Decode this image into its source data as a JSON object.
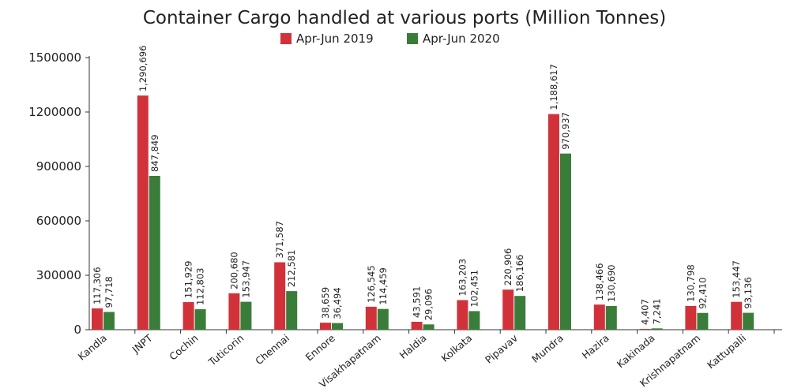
{
  "colors": {
    "series1": "#d1323a",
    "series2": "#3a7d3a",
    "axis": "#333333"
  },
  "chart_data": {
    "type": "bar",
    "title": "Container Cargo handled at various ports (Million Tonnes)",
    "xlabel": "",
    "ylabel": "",
    "ylim": [
      0,
      1500000
    ],
    "yticks": [
      0,
      300000,
      600000,
      900000,
      1200000,
      1500000
    ],
    "ytick_labels": [
      "0",
      "300000",
      "600000",
      "900000",
      "1200000",
      "1500000"
    ],
    "grid": false,
    "legend_position": "top-center",
    "categories": [
      "Kandla",
      "JNPT",
      "Cochin",
      "Tuticorin",
      "Chennai",
      "Ennore",
      "Visakhapatnam",
      "Haldia",
      "Kolkata",
      "Pipavav",
      "Mundra",
      "Hazira",
      "Kakinada",
      "Krishnapatnam",
      "Kattupalli"
    ],
    "series": [
      {
        "name": "Apr-Jun 2019",
        "values": [
          117306,
          1290696,
          151929,
          200680,
          371587,
          38659,
          126545,
          43591,
          163203,
          220906,
          1188617,
          138466,
          4407,
          130798,
          153447
        ],
        "labels": [
          "117,306",
          "1,290,696",
          "151,929",
          "200,680",
          "371,587",
          "38,659",
          "126,545",
          "43,591",
          "163,203",
          "220,906",
          "1,188,617",
          "138,466",
          "4,407",
          "130,798",
          "153,447"
        ]
      },
      {
        "name": "Apr-Jun 2020",
        "values": [
          97718,
          847849,
          112803,
          153947,
          212581,
          36494,
          114459,
          29096,
          102451,
          186166,
          970937,
          130690,
          7241,
          92410,
          93136
        ],
        "labels": [
          "97,718",
          "847,849",
          "112,803",
          "153,947",
          "212,581",
          "36,494",
          "114,459",
          "29,096",
          "102,451",
          "186,166",
          "970,937",
          "130,690",
          "7,241",
          "92,410",
          "93,136"
        ]
      }
    ]
  }
}
